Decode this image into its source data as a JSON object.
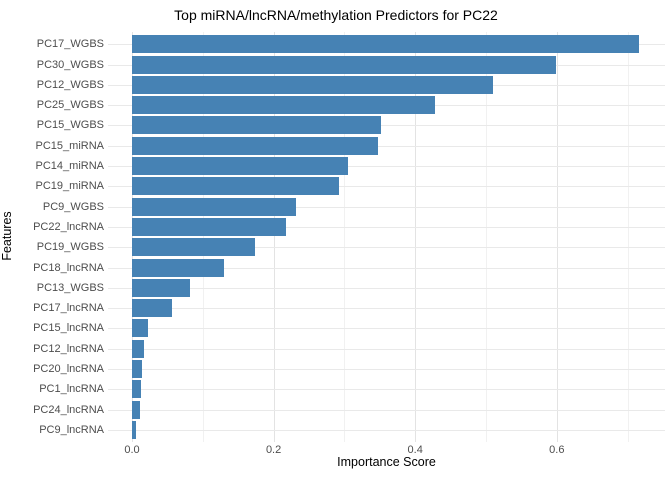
{
  "chart_data": {
    "type": "bar",
    "orientation": "horizontal",
    "title": "Top miRNA/lncRNA/methylation Predictors for PC22",
    "xlabel": "Importance Score",
    "ylabel": "Features",
    "categories": [
      "PC17_WGBS",
      "PC30_WGBS",
      "PC12_WGBS",
      "PC25_WGBS",
      "PC15_WGBS",
      "PC15_miRNA",
      "PC14_miRNA",
      "PC19_miRNA",
      "PC9_WGBS",
      "PC22_lncRNA",
      "PC19_WGBS",
      "PC18_lncRNA",
      "PC13_WGBS",
      "PC17_lncRNA",
      "PC15_lncRNA",
      "PC12_lncRNA",
      "PC20_lncRNA",
      "PC1_lncRNA",
      "PC24_lncRNA",
      "PC9_lncRNA"
    ],
    "values": [
      0.716,
      0.599,
      0.51,
      0.428,
      0.352,
      0.348,
      0.305,
      0.293,
      0.232,
      0.217,
      0.174,
      0.13,
      0.082,
      0.057,
      0.022,
      0.017,
      0.014,
      0.013,
      0.011,
      0.006
    ],
    "x_ticks": {
      "labels": [
        "0.0",
        "0.2",
        "0.4",
        "0.6"
      ],
      "values": [
        0,
        0.2,
        0.4,
        0.6
      ]
    },
    "x_minor_ticks": [
      0.1,
      0.3,
      0.5,
      0.7
    ],
    "xlim": [
      0,
      0.753
    ],
    "grid": "on",
    "legend": "none",
    "colors": {
      "bar": "#4682B4",
      "grid_major": "#E3E3E3",
      "grid_minor": "#F1F1F1",
      "grid_row": "#E9E9E9",
      "axis_text": "#4D4D4D",
      "title_text": "#000000",
      "background": "#FFFFFF"
    }
  }
}
